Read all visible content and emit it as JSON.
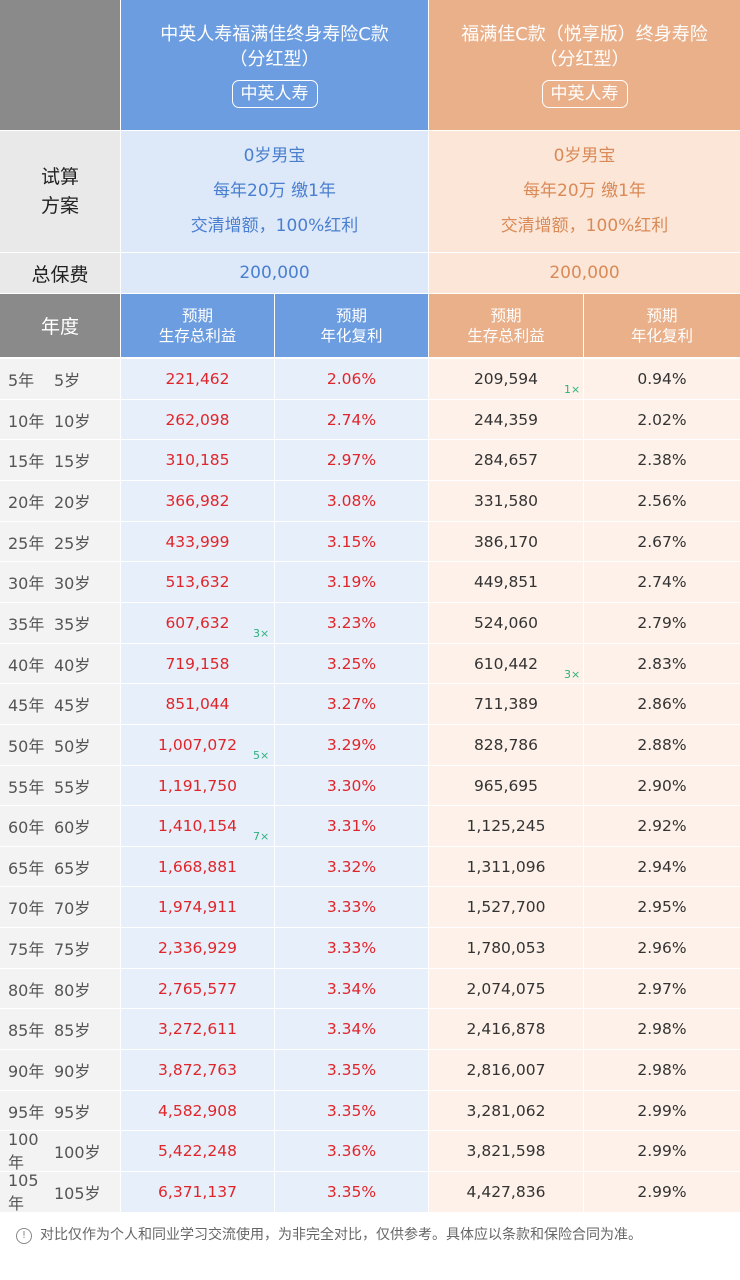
{
  "product_a": {
    "title_line1": "中英人寿福满佳终身寿险C款",
    "title_line2": "（分红型）",
    "badge": "中英人寿"
  },
  "product_b": {
    "title_line1": "福满佳C款（悦享版）终身寿险",
    "title_line2": "（分红型）",
    "badge": "中英人寿"
  },
  "plan": {
    "label_line1": "试算",
    "label_line2": "方案",
    "line1": "0岁男宝",
    "line2": "每年20万 缴1年",
    "line3": "交清增额，100%红利"
  },
  "total": {
    "label": "总保费",
    "a": "200,000",
    "b": "200,000"
  },
  "header": {
    "year": "年度",
    "benefit_line1": "预期",
    "benefit_line2": "生存总利益",
    "rate_line1": "预期",
    "rate_line2": "年化复利"
  },
  "rows": [
    {
      "y": "5年",
      "age": "5岁",
      "a_val": "221,462",
      "a_rate": "2.06%",
      "b_val": "209,594",
      "b_rate": "0.94%"
    },
    {
      "y": "10年",
      "age": "10岁",
      "a_val": "262,098",
      "a_rate": "2.74%",
      "b_val": "244,359",
      "b_rate": "2.02%"
    },
    {
      "y": "15年",
      "age": "15岁",
      "a_val": "310,185",
      "a_rate": "2.97%",
      "b_val": "284,657",
      "b_rate": "2.38%"
    },
    {
      "y": "20年",
      "age": "20岁",
      "a_val": "366,982",
      "a_rate": "3.08%",
      "b_val": "331,580",
      "b_rate": "2.56%"
    },
    {
      "y": "25年",
      "age": "25岁",
      "a_val": "433,999",
      "a_rate": "3.15%",
      "b_val": "386,170",
      "b_rate": "2.67%"
    },
    {
      "y": "30年",
      "age": "30岁",
      "a_val": "513,632",
      "a_rate": "3.19%",
      "b_val": "449,851",
      "b_rate": "2.74%"
    },
    {
      "y": "35年",
      "age": "35岁",
      "a_val": "607,632",
      "a_rate": "3.23%",
      "b_val": "524,060",
      "b_rate": "2.79%"
    },
    {
      "y": "40年",
      "age": "40岁",
      "a_val": "719,158",
      "a_rate": "3.25%",
      "b_val": "610,442",
      "b_rate": "2.83%"
    },
    {
      "y": "45年",
      "age": "45岁",
      "a_val": "851,044",
      "a_rate": "3.27%",
      "b_val": "711,389",
      "b_rate": "2.86%"
    },
    {
      "y": "50年",
      "age": "50岁",
      "a_val": "1,007,072",
      "a_rate": "3.29%",
      "b_val": "828,786",
      "b_rate": "2.88%"
    },
    {
      "y": "55年",
      "age": "55岁",
      "a_val": "1,191,750",
      "a_rate": "3.30%",
      "b_val": "965,695",
      "b_rate": "2.90%"
    },
    {
      "y": "60年",
      "age": "60岁",
      "a_val": "1,410,154",
      "a_rate": "3.31%",
      "b_val": "1,125,245",
      "b_rate": "2.92%"
    },
    {
      "y": "65年",
      "age": "65岁",
      "a_val": "1,668,881",
      "a_rate": "3.32%",
      "b_val": "1,311,096",
      "b_rate": "2.94%"
    },
    {
      "y": "70年",
      "age": "70岁",
      "a_val": "1,974,911",
      "a_rate": "3.33%",
      "b_val": "1,527,700",
      "b_rate": "2.95%"
    },
    {
      "y": "75年",
      "age": "75岁",
      "a_val": "2,336,929",
      "a_rate": "3.33%",
      "b_val": "1,780,053",
      "b_rate": "2.96%"
    },
    {
      "y": "80年",
      "age": "80岁",
      "a_val": "2,765,577",
      "a_rate": "3.34%",
      "b_val": "2,074,075",
      "b_rate": "2.97%"
    },
    {
      "y": "85年",
      "age": "85岁",
      "a_val": "3,272,611",
      "a_rate": "3.34%",
      "b_val": "2,416,878",
      "b_rate": "2.98%"
    },
    {
      "y": "90年",
      "age": "90岁",
      "a_val": "3,872,763",
      "a_rate": "3.35%",
      "b_val": "2,816,007",
      "b_rate": "2.98%"
    },
    {
      "y": "95年",
      "age": "95岁",
      "a_val": "4,582,908",
      "a_rate": "3.35%",
      "b_val": "3,281,062",
      "b_rate": "2.99%"
    },
    {
      "y": "100年",
      "age": "100岁",
      "a_val": "5,422,248",
      "a_rate": "3.36%",
      "b_val": "3,821,598",
      "b_rate": "2.99%"
    },
    {
      "y": "105年",
      "age": "105岁",
      "a_val": "6,371,137",
      "a_rate": "3.35%",
      "b_val": "4,427,836",
      "b_rate": "2.99%"
    }
  ],
  "markers": [
    {
      "text": "1×",
      "col": "b",
      "row": 0
    },
    {
      "text": "3×",
      "col": "a",
      "row": 6
    },
    {
      "text": "3×",
      "col": "b",
      "row": 7
    },
    {
      "text": "5×",
      "col": "a",
      "row": 9
    },
    {
      "text": "7×",
      "col": "a",
      "row": 11
    }
  ],
  "footer_note": "对比仅作为个人和同业学习交流使用，为非完全对比，仅供参考。具体应以条款和保险合同为准。"
}
